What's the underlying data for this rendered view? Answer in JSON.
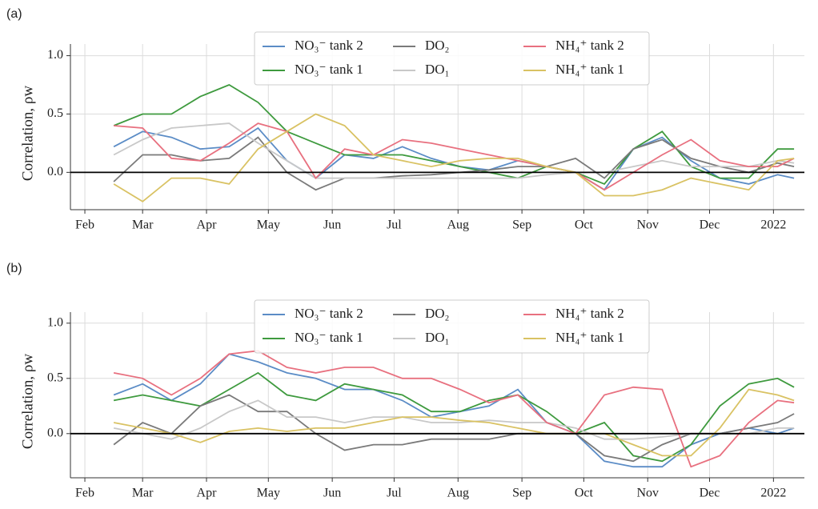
{
  "chart_data": [
    {
      "type": "line",
      "label": "(a)",
      "ylabel": "Correlation, ρw",
      "x": [
        14,
        28,
        42,
        56,
        70,
        84,
        98,
        112,
        126,
        140,
        154,
        168,
        182,
        196,
        210,
        224,
        238,
        252,
        266,
        280,
        294,
        308,
        322,
        336,
        344
      ],
      "xlim": [
        -7,
        349
      ],
      "xticks": [
        {
          "value": 0,
          "label": "Feb"
        },
        {
          "value": 28,
          "label": "Mar"
        },
        {
          "value": 59,
          "label": "Apr"
        },
        {
          "value": 89,
          "label": "May"
        },
        {
          "value": 120,
          "label": "Jun"
        },
        {
          "value": 150,
          "label": "Jul"
        },
        {
          "value": 181,
          "label": "Aug"
        },
        {
          "value": 212,
          "label": "Sep"
        },
        {
          "value": 242,
          "label": "Oct"
        },
        {
          "value": 273,
          "label": "Nov"
        },
        {
          "value": 303,
          "label": "Dec"
        },
        {
          "value": 334,
          "label": "2022"
        }
      ],
      "ylim": [
        -0.32,
        1.1
      ],
      "yticks": [
        {
          "value": 0,
          "label": "0.0"
        },
        {
          "value": 0.5,
          "label": "0.5"
        },
        {
          "value": 1,
          "label": "1.0"
        }
      ],
      "axhline": 0,
      "grid": true,
      "legend": "upper center",
      "series": [
        {
          "name": "NO₃⁻ tank 2",
          "color": "#5b8cc6",
          "values": [
            0.22,
            0.35,
            0.3,
            0.2,
            0.22,
            0.38,
            0.1,
            -0.05,
            0.15,
            0.12,
            0.22,
            0.12,
            0.05,
            0.02,
            0.1,
            0.05,
            0.0,
            -0.15,
            0.2,
            0.3,
            0.1,
            -0.05,
            -0.1,
            -0.02,
            -0.05
          ]
        },
        {
          "name": "NO₃⁻ tank 1",
          "color": "#3e9a3e",
          "values": [
            0.4,
            0.5,
            0.5,
            0.65,
            0.75,
            0.6,
            0.35,
            0.25,
            0.15,
            0.15,
            0.15,
            0.1,
            0.05,
            0.0,
            -0.05,
            0.05,
            0.0,
            -0.1,
            0.2,
            0.35,
            0.05,
            -0.05,
            -0.05,
            0.2,
            0.2
          ]
        },
        {
          "name": "DO₂",
          "color": "#7a7a7a",
          "values": [
            -0.08,
            0.15,
            0.15,
            0.1,
            0.12,
            0.3,
            0.0,
            -0.15,
            -0.05,
            -0.05,
            -0.03,
            -0.02,
            0.0,
            0.02,
            0.05,
            0.05,
            0.12,
            -0.05,
            0.2,
            0.28,
            0.12,
            0.05,
            0.0,
            0.08,
            0.05
          ]
        },
        {
          "name": "DO₁",
          "color": "#c8c8c8",
          "values": [
            0.15,
            0.28,
            0.38,
            0.4,
            0.42,
            0.25,
            0.1,
            -0.05,
            -0.05,
            -0.05,
            -0.05,
            -0.05,
            -0.05,
            -0.05,
            -0.05,
            -0.02,
            0.0,
            0.0,
            0.05,
            0.1,
            0.05,
            0.05,
            0.05,
            0.1,
            0.08
          ]
        },
        {
          "name": "NH₄⁺ tank 2",
          "color": "#e8707f",
          "values": [
            0.4,
            0.38,
            0.12,
            0.1,
            0.25,
            0.42,
            0.35,
            -0.05,
            0.2,
            0.15,
            0.28,
            0.25,
            0.2,
            0.15,
            0.1,
            0.05,
            0.0,
            -0.15,
            0.0,
            0.15,
            0.28,
            0.1,
            0.05,
            0.05,
            0.12
          ]
        },
        {
          "name": "NH₄⁺ tank 1",
          "color": "#d9c263",
          "values": [
            -0.1,
            -0.25,
            -0.05,
            -0.05,
            -0.1,
            0.2,
            0.35,
            0.5,
            0.4,
            0.15,
            0.1,
            0.05,
            0.1,
            0.12,
            0.12,
            0.05,
            0.0,
            -0.2,
            -0.2,
            -0.15,
            -0.05,
            -0.1,
            -0.15,
            0.1,
            0.12
          ]
        }
      ]
    },
    {
      "type": "line",
      "label": "(b)",
      "ylabel": "Correlation, ρw",
      "x": [
        14,
        28,
        42,
        56,
        70,
        84,
        98,
        112,
        126,
        140,
        154,
        168,
        182,
        196,
        210,
        224,
        238,
        252,
        266,
        280,
        294,
        308,
        322,
        336,
        344
      ],
      "xlim": [
        -7,
        349
      ],
      "xticks": [
        {
          "value": 0,
          "label": "Feb"
        },
        {
          "value": 28,
          "label": "Mar"
        },
        {
          "value": 59,
          "label": "Apr"
        },
        {
          "value": 89,
          "label": "May"
        },
        {
          "value": 120,
          "label": "Jun"
        },
        {
          "value": 150,
          "label": "Jul"
        },
        {
          "value": 181,
          "label": "Aug"
        },
        {
          "value": 212,
          "label": "Sep"
        },
        {
          "value": 242,
          "label": "Oct"
        },
        {
          "value": 273,
          "label": "Nov"
        },
        {
          "value": 303,
          "label": "Dec"
        },
        {
          "value": 334,
          "label": "2022"
        }
      ],
      "ylim": [
        -0.4,
        1.1
      ],
      "yticks": [
        {
          "value": 0,
          "label": "0.0"
        },
        {
          "value": 0.5,
          "label": "0.5"
        },
        {
          "value": 1,
          "label": "1.0"
        }
      ],
      "axhline": 0,
      "grid": true,
      "legend": "upper center",
      "series": [
        {
          "name": "NO₃⁻ tank 2",
          "color": "#5b8cc6",
          "values": [
            0.35,
            0.45,
            0.3,
            0.45,
            0.72,
            0.65,
            0.55,
            0.5,
            0.4,
            0.4,
            0.3,
            0.15,
            0.2,
            0.25,
            0.4,
            0.1,
            0.0,
            -0.25,
            -0.3,
            -0.3,
            -0.1,
            0.0,
            0.05,
            0.0,
            0.05
          ]
        },
        {
          "name": "NO₃⁻ tank 1",
          "color": "#3e9a3e",
          "values": [
            0.3,
            0.35,
            0.3,
            0.25,
            0.4,
            0.55,
            0.35,
            0.3,
            0.45,
            0.4,
            0.35,
            0.2,
            0.2,
            0.3,
            0.35,
            0.2,
            0.0,
            0.1,
            -0.2,
            -0.25,
            -0.1,
            0.25,
            0.45,
            0.5,
            0.42
          ]
        },
        {
          "name": "DO₂",
          "color": "#7a7a7a",
          "values": [
            -0.1,
            0.1,
            0.0,
            0.25,
            0.35,
            0.2,
            0.2,
            0.0,
            -0.15,
            -0.1,
            -0.1,
            -0.05,
            -0.05,
            -0.05,
            0.0,
            0.0,
            0.0,
            -0.2,
            -0.25,
            -0.1,
            0.0,
            0.0,
            0.05,
            0.1,
            0.18
          ]
        },
        {
          "name": "DO₁",
          "color": "#c8c8c8",
          "values": [
            0.05,
            0.0,
            -0.05,
            0.05,
            0.2,
            0.3,
            0.15,
            0.15,
            0.1,
            0.15,
            0.15,
            0.1,
            0.1,
            0.12,
            0.1,
            0.1,
            0.05,
            -0.05,
            -0.05,
            -0.03,
            0.0,
            0.0,
            0.0,
            0.05,
            0.05
          ]
        },
        {
          "name": "NH₄⁺ tank 2",
          "color": "#e8707f",
          "values": [
            0.55,
            0.5,
            0.35,
            0.5,
            0.72,
            0.75,
            0.6,
            0.55,
            0.6,
            0.6,
            0.5,
            0.5,
            0.4,
            0.28,
            0.35,
            0.1,
            0.0,
            0.35,
            0.42,
            0.4,
            -0.3,
            -0.2,
            0.1,
            0.3,
            0.28
          ]
        },
        {
          "name": "NH₄⁺ tank 1",
          "color": "#d9c263",
          "values": [
            0.1,
            0.05,
            0.0,
            -0.08,
            0.02,
            0.05,
            0.02,
            0.05,
            0.05,
            0.1,
            0.15,
            0.15,
            0.12,
            0.1,
            0.05,
            0.0,
            0.0,
            0.0,
            -0.1,
            -0.2,
            -0.2,
            0.05,
            0.4,
            0.35,
            0.3
          ]
        }
      ]
    }
  ]
}
